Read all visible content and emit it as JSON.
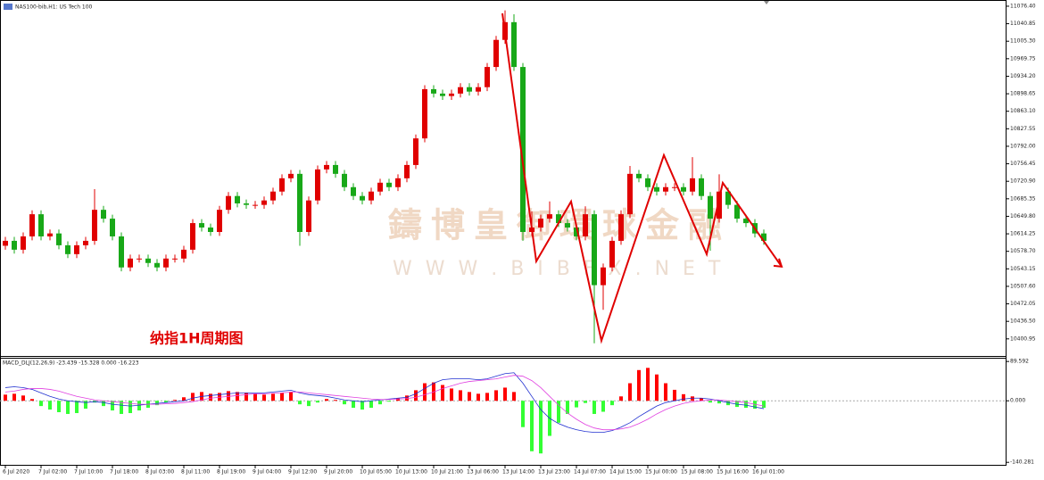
{
  "chart_data": [
    {
      "type": "candlestick",
      "title": "NAS100-bib,H1: US Tech 100",
      "annotation": "纳指1H周期图",
      "watermark": [
        "鑄博皇御環球金融",
        "W W W . B I B F X . N E T"
      ],
      "categories": [
        "6 Jul 2020",
        null,
        null,
        null,
        "7 Jul 02:00",
        null,
        null,
        null,
        "7 Jul 10:00",
        null,
        null,
        null,
        "7 Jul 18:00",
        null,
        null,
        null,
        "8 Jul 03:00",
        null,
        null,
        null,
        "8 Jul 11:00",
        null,
        null,
        null,
        "8 Jul 19:00",
        null,
        null,
        null,
        "9 Jul 04:00",
        null,
        null,
        null,
        "9 Jul 12:00",
        null,
        null,
        null,
        "9 Jul 20:00",
        null,
        null,
        null,
        "10 Jul 05:00",
        null,
        null,
        null,
        "10 Jul 13:00",
        null,
        null,
        null,
        "10 Jul 21:00",
        null,
        null,
        null,
        "13 Jul 06:00",
        null,
        null,
        null,
        "13 Jul 14:00",
        null,
        null,
        null,
        "13 Jul 23:00",
        null,
        null,
        null,
        "14 Jul 07:00",
        null,
        null,
        null,
        "14 Jul 15:00",
        null,
        null,
        null,
        "15 Jul 00:00",
        null,
        null,
        null,
        "15 Jul 08:00",
        null,
        null,
        null,
        "15 Jul 16:00",
        null,
        null,
        null,
        "16 Jul 01:00",
        null
      ],
      "open": [
        10590,
        10600,
        10582,
        10609,
        10654,
        10609,
        10615,
        10591,
        10573,
        10591,
        10600,
        10663,
        10645,
        10609,
        10546,
        10564,
        10564,
        10555,
        10546,
        10564,
        10564,
        10582,
        10636,
        10627,
        10618,
        10663,
        10691,
        10676,
        10673,
        10673,
        10682,
        10700,
        10727,
        10736,
        10618,
        10682,
        10745,
        10754,
        10736,
        10709,
        10691,
        10682,
        10700,
        10718,
        10709,
        10727,
        10754,
        10808,
        10908,
        10899,
        10894,
        10899,
        10912,
        10903,
        10912,
        10953,
        11008,
        11044,
        10953,
        10618,
        10627,
        10645,
        10654,
        10636,
        10627,
        10609,
        10654,
        10510,
        10546,
        10600,
        10654,
        10736,
        10727,
        10709,
        10700,
        10709,
        10709,
        10700,
        10727,
        10691,
        10645,
        10700,
        10673,
        10645,
        10636,
        10615
      ],
      "high": [
        10608,
        10608,
        10617,
        10662,
        10662,
        10623,
        10623,
        10599,
        10599,
        10608,
        10705,
        10671,
        10653,
        10617,
        10572,
        10572,
        10572,
        10563,
        10572,
        10572,
        10590,
        10644,
        10644,
        10635,
        10671,
        10699,
        10699,
        10684,
        10681,
        10690,
        10708,
        10735,
        10744,
        10744,
        10690,
        10753,
        10762,
        10762,
        10744,
        10717,
        10699,
        10708,
        10726,
        10726,
        10735,
        10762,
        10816,
        10916,
        10916,
        10907,
        10907,
        10920,
        10920,
        10920,
        10961,
        11016,
        11068,
        11060,
        10961,
        10660,
        10653,
        10680,
        10662,
        10644,
        10635,
        10670,
        10662,
        10554,
        10608,
        10662,
        10752,
        10744,
        10735,
        10717,
        10717,
        10717,
        10717,
        10770,
        10735,
        10699,
        10735,
        10708,
        10681,
        10653,
        10644,
        10623
      ],
      "low": [
        10582,
        10574,
        10574,
        10601,
        10601,
        10601,
        10583,
        10565,
        10565,
        10583,
        10592,
        10637,
        10601,
        10538,
        10538,
        10556,
        10547,
        10538,
        10538,
        10556,
        10556,
        10574,
        10619,
        10610,
        10610,
        10655,
        10668,
        10665,
        10665,
        10665,
        10674,
        10692,
        10719,
        10590,
        10610,
        10674,
        10737,
        10728,
        10701,
        10683,
        10674,
        10674,
        10692,
        10701,
        10701,
        10719,
        10746,
        10800,
        10891,
        10886,
        10886,
        10891,
        10895,
        10895,
        10904,
        10945,
        11000,
        10945,
        10600,
        10610,
        10619,
        10637,
        10628,
        10619,
        10601,
        10601,
        10392,
        10460,
        10538,
        10592,
        10646,
        10719,
        10701,
        10692,
        10692,
        10701,
        10692,
        10692,
        10683,
        10580,
        10637,
        10665,
        10637,
        10628,
        10607,
        10592
      ],
      "close": [
        10600,
        10582,
        10609,
        10654,
        10609,
        10615,
        10591,
        10573,
        10591,
        10600,
        10663,
        10645,
        10609,
        10546,
        10564,
        10564,
        10555,
        10546,
        10564,
        10564,
        10582,
        10636,
        10627,
        10618,
        10663,
        10691,
        10676,
        10673,
        10673,
        10682,
        10700,
        10727,
        10736,
        10618,
        10682,
        10745,
        10754,
        10736,
        10709,
        10691,
        10682,
        10700,
        10718,
        10709,
        10727,
        10754,
        10808,
        10908,
        10899,
        10894,
        10899,
        10912,
        10903,
        10912,
        10953,
        11008,
        11044,
        10953,
        10618,
        10627,
        10645,
        10654,
        10636,
        10627,
        10609,
        10654,
        10510,
        10546,
        10600,
        10654,
        10736,
        10727,
        10709,
        10700,
        10709,
        10709,
        10700,
        10727,
        10691,
        10645,
        10700,
        10673,
        10645,
        10636,
        10615,
        10600
      ],
      "up_color": "#e00000",
      "down_color": "#18a818",
      "zigzag": {
        "color": "#e00000",
        "x": [
          55.7,
          59.5,
          63.4,
          66.8,
          73.8,
          78.6,
          80.4,
          87.0
        ],
        "y": [
          11061.9,
          10558.4,
          10679.8,
          10397.3,
          10774.0,
          10572.9,
          10717.8,
          10547.6
        ]
      },
      "ylim": [
        10368,
        11089
      ],
      "yticks": [
        {
          "value": 11076.4,
          "label": "11076.40"
        },
        {
          "value": 11040.85,
          "label": "11040.85"
        },
        {
          "value": 11005.3,
          "label": "11005.30"
        },
        {
          "value": 10969.75,
          "label": "10969.75"
        },
        {
          "value": 10934.2,
          "label": "10934.20"
        },
        {
          "value": 10898.65,
          "label": "10898.65"
        },
        {
          "value": 10863.1,
          "label": "10863.10"
        },
        {
          "value": 10827.55,
          "label": "10827.55"
        },
        {
          "value": 10792,
          "label": "10792.00"
        },
        {
          "value": 10756.45,
          "label": "10756.45"
        },
        {
          "value": 10720.9,
          "label": "10720.90"
        },
        {
          "value": 10685.35,
          "label": "10685.35"
        },
        {
          "value": 10649.8,
          "label": "10649.80"
        },
        {
          "value": 10614.25,
          "label": "10614.25"
        },
        {
          "value": 10578.7,
          "label": "10578.70"
        },
        {
          "value": 10543.15,
          "label": "10543.15"
        },
        {
          "value": 10507.6,
          "label": "10507.60"
        },
        {
          "value": 10472.05,
          "label": "10472.05"
        },
        {
          "value": 10436.5,
          "label": "10436.50"
        },
        {
          "value": 10400.95,
          "label": "10400.95"
        }
      ]
    },
    {
      "type": "macd",
      "title": "MACD_DLJ(12,26,9) -23.439 -15.328 0.000 -16.223",
      "values": [
        14,
        16,
        12,
        4,
        -12,
        -20,
        -26,
        -30,
        -28,
        -18,
        -4,
        -12,
        -22,
        -30,
        -28,
        -22,
        -16,
        -10,
        -4,
        2,
        8,
        18,
        20,
        16,
        18,
        22,
        20,
        18,
        16,
        14,
        16,
        18,
        20,
        -8,
        -12,
        -4,
        4,
        2,
        -8,
        -16,
        -20,
        -16,
        -8,
        -2,
        6,
        12,
        24,
        40,
        42,
        36,
        28,
        24,
        20,
        16,
        18,
        24,
        30,
        20,
        -60,
        -115,
        -120,
        -80,
        -50,
        -30,
        -15,
        -5,
        -30,
        -25,
        -10,
        10,
        40,
        70,
        75,
        60,
        40,
        25,
        15,
        10,
        6,
        -4,
        -6,
        -10,
        -14,
        -16,
        -18,
        -16
      ],
      "up_color": "#ff0000",
      "down_color": "#33ff33",
      "series": [
        {
          "color": "#2030d0",
          "values": [
            30,
            32,
            30,
            26,
            18,
            10,
            4,
            0,
            -2,
            -4,
            -2,
            -4,
            -8,
            -10,
            -12,
            -10,
            -8,
            -6,
            -4,
            -2,
            0,
            6,
            10,
            12,
            14,
            16,
            18,
            18,
            18,
            18,
            20,
            22,
            24,
            18,
            14,
            12,
            10,
            6,
            2,
            0,
            -2,
            0,
            2,
            4,
            6,
            8,
            16,
            28,
            40,
            48,
            50,
            50,
            50,
            48,
            50,
            56,
            62,
            64,
            40,
            10,
            -20,
            -40,
            -52,
            -60,
            -66,
            -70,
            -72,
            -72,
            -68,
            -60,
            -50,
            -36,
            -24,
            -12,
            -4,
            0,
            4,
            6,
            6,
            4,
            0,
            -4,
            -8,
            -10,
            -14,
            -18
          ]
        },
        {
          "color": "#e040e0",
          "values": [
            20,
            22,
            26,
            28,
            28,
            26,
            22,
            16,
            10,
            6,
            2,
            0,
            -2,
            -4,
            -6,
            -8,
            -8,
            -8,
            -7,
            -6,
            -4,
            -2,
            2,
            6,
            8,
            10,
            12,
            14,
            16,
            16,
            17,
            18,
            20,
            20,
            18,
            16,
            14,
            12,
            10,
            8,
            6,
            4,
            3,
            3,
            4,
            5,
            8,
            14,
            20,
            28,
            34,
            40,
            44,
            46,
            48,
            50,
            54,
            58,
            56,
            46,
            30,
            10,
            -10,
            -28,
            -42,
            -54,
            -62,
            -66,
            -66,
            -64,
            -60,
            -52,
            -42,
            -30,
            -20,
            -12,
            -6,
            -2,
            0,
            2,
            2,
            0,
            -2,
            -4,
            -8,
            -12
          ]
        }
      ],
      "ylim": [
        -148,
        96
      ],
      "yticks": [
        89.592,
        {
          "value": 0,
          "label": "0.000"
        },
        -140.281
      ]
    }
  ]
}
